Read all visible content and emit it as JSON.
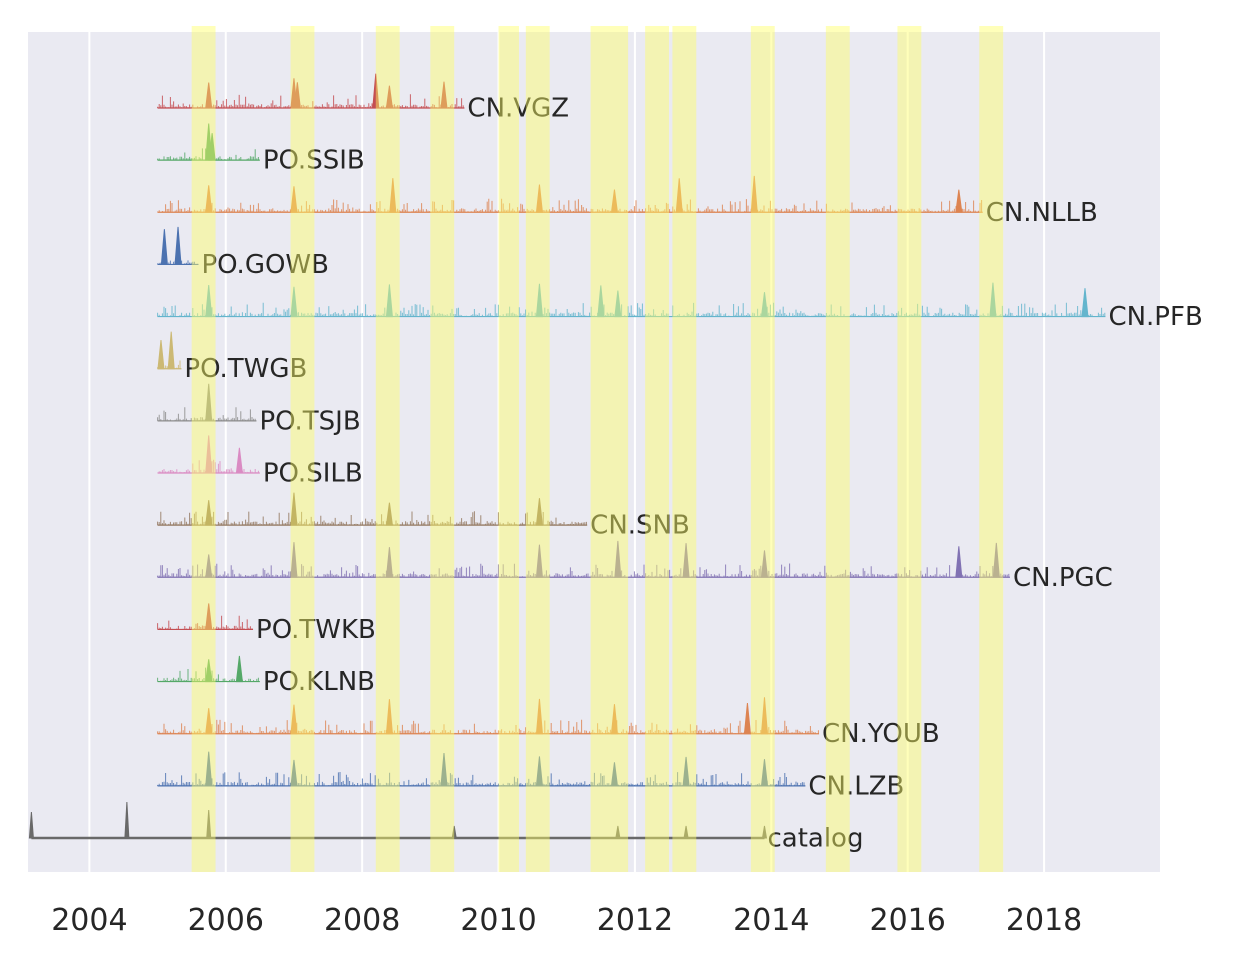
{
  "chart_data": {
    "type": "area",
    "title": "",
    "xlabel": "",
    "ylabel": "",
    "xlim": [
      2003.1,
      2019.7
    ],
    "x_ticks": [
      "2004",
      "2006",
      "2008",
      "2010",
      "2012",
      "2014",
      "2016",
      "2018"
    ],
    "grid": true,
    "highlight_windows": [
      [
        2005.5,
        2005.85
      ],
      [
        2006.95,
        2007.3
      ],
      [
        2008.2,
        2008.55
      ],
      [
        2009.0,
        2009.35
      ],
      [
        2010.0,
        2010.3
      ],
      [
        2010.4,
        2010.75
      ],
      [
        2011.35,
        2011.9
      ],
      [
        2012.15,
        2012.5
      ],
      [
        2012.55,
        2012.9
      ],
      [
        2013.7,
        2014.05
      ],
      [
        2014.8,
        2015.15
      ],
      [
        2015.85,
        2016.2
      ],
      [
        2017.05,
        2017.4
      ]
    ],
    "series": [
      {
        "name": "CN.VGZ",
        "start": 2005.0,
        "end": 2009.5,
        "color": "#c44e52",
        "peaks": [
          2005.75,
          2007.0,
          2007.05,
          2008.2,
          2008.4,
          2009.2
        ]
      },
      {
        "name": "PO.SSIB",
        "start": 2005.0,
        "end": 2006.5,
        "color": "#55a868",
        "peaks": [
          2005.75,
          2005.8
        ]
      },
      {
        "name": "CN.NLLB",
        "start": 2005.0,
        "end": 2017.1,
        "color": "#dd8452",
        "peaks": [
          2005.75,
          2007.0,
          2008.45,
          2010.6,
          2011.7,
          2012.65,
          2013.75,
          2016.75
        ]
      },
      {
        "name": "PO.GOWB",
        "start": 2005.0,
        "end": 2005.6,
        "color": "#4c72b0",
        "peaks": [
          2005.1,
          2005.3
        ]
      },
      {
        "name": "CN.PFB",
        "start": 2005.0,
        "end": 2018.9,
        "color": "#64b5cd",
        "peaks": [
          2005.75,
          2007.0,
          2008.4,
          2010.6,
          2011.5,
          2011.75,
          2013.9,
          2017.25,
          2018.6
        ]
      },
      {
        "name": "PO.TWGB",
        "start": 2005.0,
        "end": 2005.35,
        "color": "#ccb974",
        "peaks": [
          2005.05,
          2005.2
        ]
      },
      {
        "name": "PO.TSJB",
        "start": 2005.0,
        "end": 2006.45,
        "color": "#8c8c8c",
        "peaks": [
          2005.75
        ]
      },
      {
        "name": "PO.SILB",
        "start": 2005.0,
        "end": 2006.5,
        "color": "#da8bc3",
        "peaks": [
          2005.75,
          2006.2
        ]
      },
      {
        "name": "CN.SNB",
        "start": 2005.0,
        "end": 2011.3,
        "color": "#937860",
        "peaks": [
          2005.75,
          2007.0,
          2008.4,
          2010.6
        ]
      },
      {
        "name": "CN.PGC",
        "start": 2005.0,
        "end": 2017.5,
        "color": "#8172b3",
        "peaks": [
          2005.75,
          2007.0,
          2008.4,
          2010.6,
          2011.75,
          2012.75,
          2013.9,
          2016.75,
          2017.3
        ]
      },
      {
        "name": "PO.TWKB",
        "start": 2005.0,
        "end": 2006.4,
        "color": "#c44e52",
        "peaks": [
          2005.75
        ]
      },
      {
        "name": "PO.KLNB",
        "start": 2005.0,
        "end": 2006.5,
        "color": "#55a868",
        "peaks": [
          2005.75,
          2006.2
        ]
      },
      {
        "name": "CN.YOUB",
        "start": 2005.0,
        "end": 2014.7,
        "color": "#dd8452",
        "peaks": [
          2005.75,
          2007.0,
          2008.4,
          2010.6,
          2011.7,
          2013.65,
          2013.9
        ]
      },
      {
        "name": "CN.LZB",
        "start": 2005.0,
        "end": 2014.5,
        "color": "#4c72b0",
        "peaks": [
          2005.75,
          2007.0,
          2009.2,
          2010.6,
          2011.7,
          2012.75,
          2013.9
        ]
      },
      {
        "name": "catalog",
        "start": 2003.15,
        "end": 2013.9,
        "color": "#696969",
        "peaks": [
          2003.15,
          2004.55,
          2005.75,
          2009.35,
          2011.75,
          2012.75,
          2013.9
        ]
      }
    ]
  }
}
